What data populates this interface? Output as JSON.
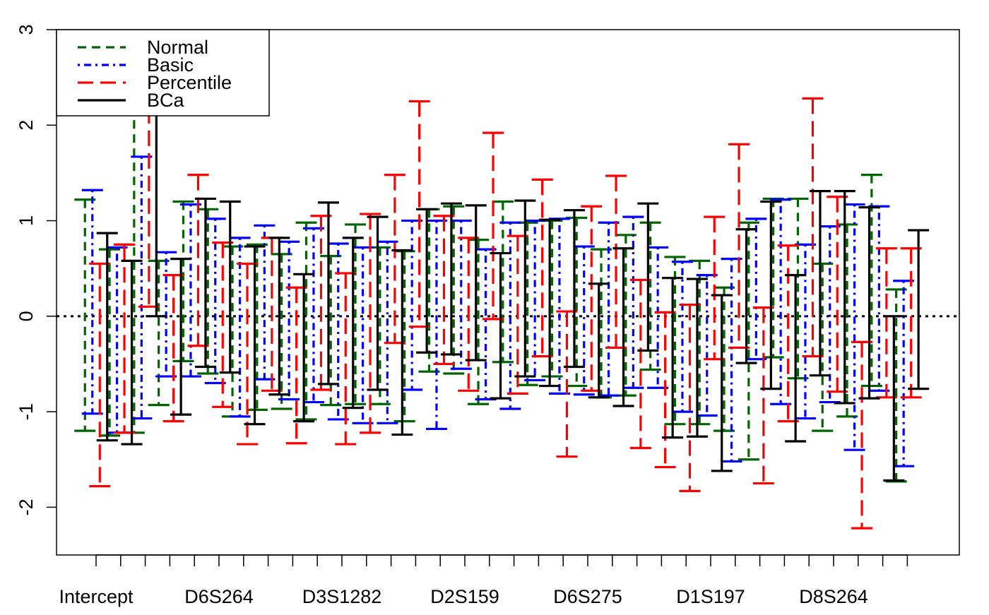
{
  "chart_data": {
    "type": "errorbar",
    "title": "",
    "xlabel": "",
    "ylabel": "",
    "ylim": [
      -2.5,
      3.0
    ],
    "yticks": [
      -2,
      -1,
      0,
      1,
      2,
      3
    ],
    "ytick_labels": [
      "-2",
      "-1",
      "0",
      "1",
      "2",
      "3"
    ],
    "x_tick_labels": [
      {
        "index": 0,
        "label": "Intercept"
      },
      {
        "index": 5,
        "label": "D6S264"
      },
      {
        "index": 10,
        "label": "D3S1282"
      },
      {
        "index": 15,
        "label": "D2S159"
      },
      {
        "index": 20,
        "label": "D6S275"
      },
      {
        "index": 25,
        "label": "D1S197"
      },
      {
        "index": 30,
        "label": "D8S264"
      }
    ],
    "n_coefficients": 34,
    "reference_line": 0,
    "grid": false,
    "legend": {
      "position": "top-left"
    },
    "series": [
      {
        "name": "Normal",
        "color": "#006400",
        "style": "dashed",
        "lower": [
          -1.2,
          -1.25,
          -1.22,
          -0.93,
          -0.47,
          -0.6,
          -1.05,
          -0.98,
          -0.97,
          -1.08,
          -0.93,
          -0.92,
          -0.92,
          -1.1,
          -0.58,
          -0.6,
          -0.92,
          -0.48,
          -0.72,
          -0.63,
          -0.73,
          -0.85,
          -0.83,
          -0.56,
          -1.13,
          -1.13,
          -1.2,
          -1.5,
          -0.43,
          -0.65,
          -1.2,
          -1.05,
          -0.73,
          -1.73
        ],
        "upper": [
          1.22,
          0.7,
          2.2,
          0.58,
          1.2,
          1.12,
          0.73,
          0.75,
          0.65,
          0.98,
          0.63,
          0.96,
          0.72,
          0.68,
          1.12,
          1.15,
          0.8,
          1.2,
          0.98,
          1.0,
          1.03,
          0.7,
          0.85,
          0.98,
          0.62,
          0.58,
          0.3,
          0.98,
          1.23,
          1.23,
          0.55,
          0.96,
          1.48,
          0.28
        ]
      },
      {
        "name": "Basic",
        "color": "#0000ff",
        "style": "dotdash",
        "lower": [
          -1.02,
          -1.22,
          -1.07,
          -0.63,
          -0.63,
          -0.7,
          -1.05,
          -0.66,
          -0.87,
          -0.9,
          -1.08,
          -1.12,
          -1.12,
          -0.77,
          -1.18,
          -0.55,
          -0.87,
          -0.97,
          -0.67,
          -0.81,
          -0.82,
          -0.83,
          -0.75,
          -0.75,
          -1.0,
          -1.04,
          -1.52,
          -0.45,
          -0.92,
          -1.07,
          -0.9,
          -1.4,
          -0.78,
          -1.57
        ],
        "upper": [
          1.32,
          0.72,
          1.67,
          0.67,
          1.17,
          1.02,
          0.82,
          0.95,
          0.78,
          0.92,
          0.76,
          0.72,
          0.78,
          1.0,
          1.0,
          1.0,
          0.7,
          0.98,
          1.0,
          1.02,
          0.73,
          0.98,
          1.04,
          0.72,
          0.57,
          0.43,
          0.6,
          1.02,
          1.22,
          0.75,
          0.94,
          1.17,
          1.15,
          0.37
        ]
      },
      {
        "name": "Percentile",
        "color": "#ff0000",
        "style": "longdash",
        "lower": [
          -1.78,
          -1.22,
          0.1,
          -1.1,
          -0.31,
          -0.95,
          -1.34,
          -0.78,
          -1.33,
          -0.77,
          -1.34,
          -1.22,
          -0.28,
          -0.11,
          -0.5,
          -0.78,
          -0.03,
          -0.81,
          -0.42,
          -1.47,
          -0.78,
          -0.33,
          -1.38,
          -1.58,
          -1.83,
          -0.45,
          -0.33,
          -1.75,
          -1.1,
          -0.42,
          -0.79,
          -2.22,
          -0.85,
          -0.85
        ],
        "upper": [
          0.55,
          0.75,
          2.18,
          0.43,
          1.48,
          0.77,
          0.55,
          0.82,
          0.3,
          1.05,
          0.45,
          1.07,
          1.48,
          2.25,
          1.05,
          0.82,
          1.92,
          0.84,
          1.43,
          0.05,
          1.15,
          1.47,
          0.38,
          0.04,
          0.12,
          1.04,
          1.8,
          0.09,
          0.74,
          2.28,
          1.25,
          -0.27,
          0.71,
          0.71
        ]
      },
      {
        "name": "BCa",
        "color": "#000000",
        "style": "solid",
        "lower": [
          -1.3,
          -1.34,
          0.0,
          -1.03,
          -0.53,
          -0.59,
          -1.13,
          -0.82,
          -1.1,
          -0.71,
          -0.96,
          -0.77,
          -1.24,
          -0.38,
          -0.4,
          -0.46,
          -0.86,
          -0.63,
          -0.73,
          -0.53,
          -0.85,
          -0.94,
          -0.36,
          -1.27,
          -1.26,
          -1.62,
          -0.49,
          -0.76,
          -1.31,
          -0.62,
          -0.91,
          -0.86,
          -1.72,
          -0.76
        ],
        "upper": [
          0.87,
          0.58,
          2.22,
          0.6,
          1.23,
          1.2,
          0.73,
          0.82,
          0.44,
          1.19,
          0.82,
          1.04,
          0.69,
          1.12,
          1.18,
          1.16,
          0.66,
          1.21,
          1.01,
          1.11,
          0.34,
          0.71,
          1.18,
          0.4,
          0.39,
          0.22,
          0.91,
          1.2,
          0.43,
          1.31,
          1.31,
          1.14,
          0.0,
          0.9
        ]
      }
    ]
  }
}
